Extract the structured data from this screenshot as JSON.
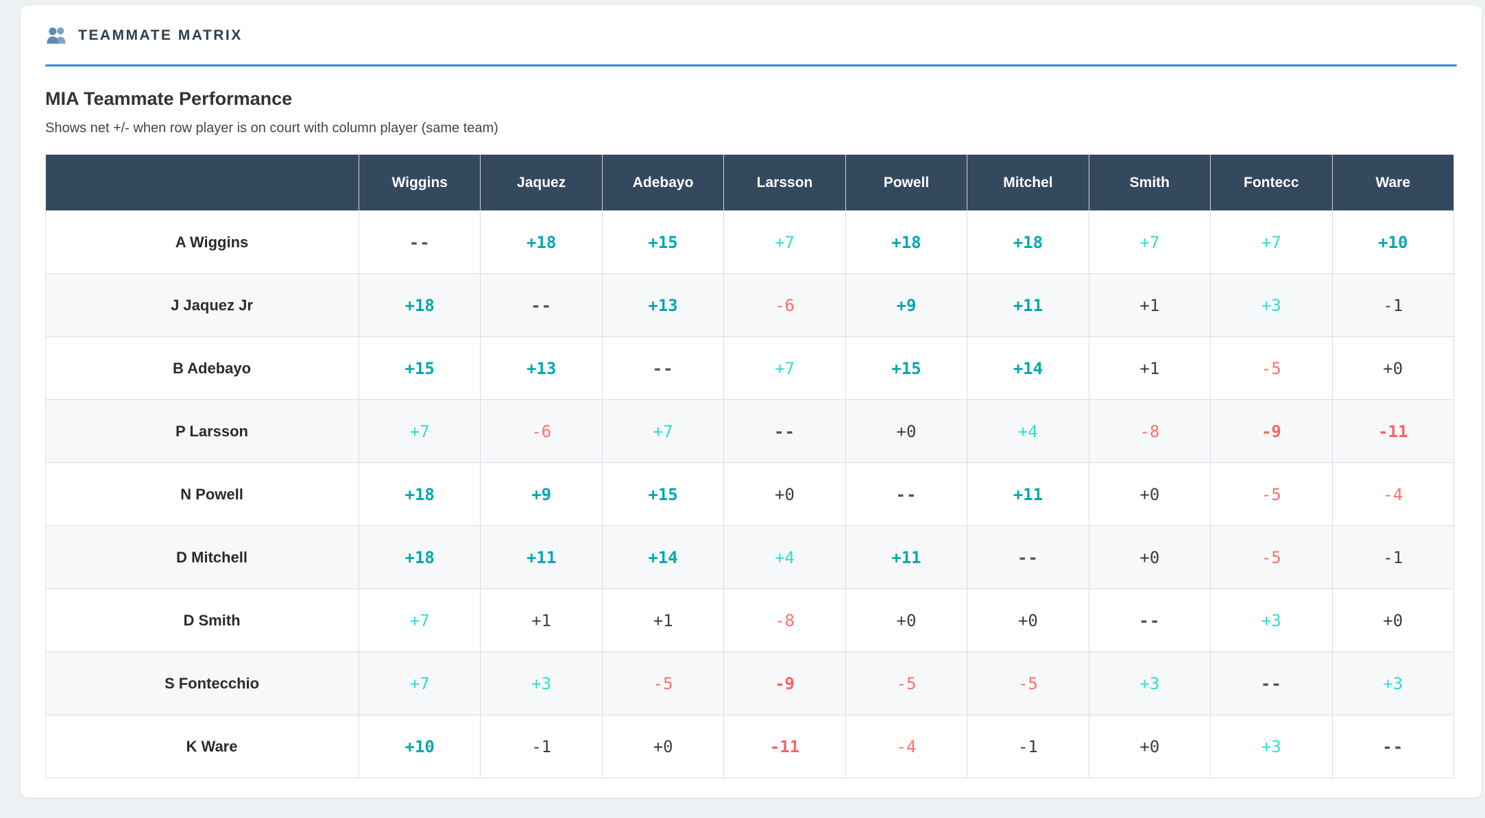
{
  "panel": {
    "title": "TEAMMATE MATRIX",
    "icon": "people-icon"
  },
  "heading": "MIA Teammate Performance",
  "subtitle": "Shows net +/- when row player is on court with column player (same team)",
  "table": {
    "columns": [
      "Wiggins",
      "Jaquez",
      "Adebayo",
      "Larsson",
      "Powell",
      "Mitchel",
      "Smith",
      "Fontecc",
      "Ware"
    ],
    "rows": [
      {
        "player": "A Wiggins",
        "values": [
          "--",
          "+18",
          "+15",
          "+7",
          "+18",
          "+18",
          "+7",
          "+7",
          "+10"
        ]
      },
      {
        "player": "J Jaquez Jr",
        "values": [
          "+18",
          "--",
          "+13",
          "-6",
          "+9",
          "+11",
          "+1",
          "+3",
          "-1"
        ]
      },
      {
        "player": "B Adebayo",
        "values": [
          "+15",
          "+13",
          "--",
          "+7",
          "+15",
          "+14",
          "+1",
          "-5",
          "+0"
        ]
      },
      {
        "player": "P Larsson",
        "values": [
          "+7",
          "-6",
          "+7",
          "--",
          "+0",
          "+4",
          "-8",
          "-9",
          "-11"
        ]
      },
      {
        "player": "N Powell",
        "values": [
          "+18",
          "+9",
          "+15",
          "+0",
          "--",
          "+11",
          "+0",
          "-5",
          "-4"
        ]
      },
      {
        "player": "D Mitchell",
        "values": [
          "+18",
          "+11",
          "+14",
          "+4",
          "+11",
          "--",
          "+0",
          "-5",
          "-1"
        ]
      },
      {
        "player": "D Smith",
        "values": [
          "+7",
          "+1",
          "+1",
          "-8",
          "+0",
          "+0",
          "--",
          "+3",
          "+0"
        ]
      },
      {
        "player": "S Fontecchio",
        "values": [
          "+7",
          "+3",
          "-5",
          "-9",
          "-5",
          "-5",
          "+3",
          "--",
          "+3"
        ]
      },
      {
        "player": "K Ware",
        "values": [
          "+10",
          "-1",
          "+0",
          "-11",
          "-4",
          "-1",
          "+0",
          "+3",
          "--"
        ]
      }
    ]
  },
  "colors": {
    "accent_blue": "#2f8fdd",
    "header_navy": "#34495e",
    "positive_strong": "#00a8b0",
    "positive_light": "#2bdfd2",
    "negative": "#ff6f6f",
    "neutral_dark": "#3d3d3d",
    "card_bg": "#ffffff",
    "page_bg": "#eef1f4"
  }
}
